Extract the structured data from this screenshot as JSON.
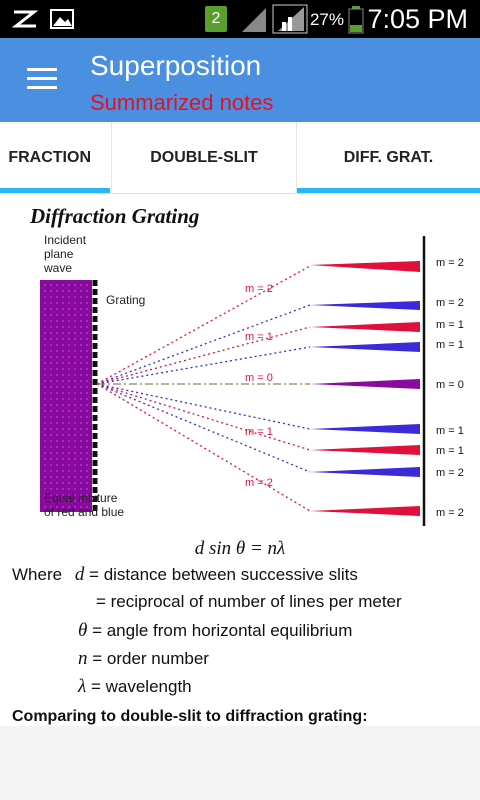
{
  "status_bar": {
    "notification_count": "2",
    "battery_percent": "27%",
    "time": "7:05 PM"
  },
  "app_bar": {
    "title": "Superposition",
    "subtitle": "Summarized notes"
  },
  "tabs": [
    {
      "label": "FRACTION"
    },
    {
      "label": "DOUBLE-SLIT"
    },
    {
      "label": "DIFF. GRAT.",
      "selected": true
    }
  ],
  "content": {
    "heading": "Diffraction Grating",
    "diagram": {
      "incident_label_1": "Incident",
      "incident_label_2": "plane",
      "incident_label_3": "wave",
      "grating_label": "Grating",
      "mixture_label_1": "Equal mixture",
      "mixture_label_2": "of red and blue",
      "order_labels_left": [
        "m = 2",
        "m = 1",
        "m = 0",
        "m = 1",
        "m = 2"
      ],
      "order_labels_right": [
        "m = 2",
        "m = 2",
        "m = 1",
        "m = 1",
        "m = 0",
        "m = 1",
        "m = 1",
        "m = 2",
        "m = 2"
      ]
    },
    "formula": "d sin θ = nλ",
    "definitions": {
      "where": "Where",
      "d_var": "d",
      "d_eq": "= distance between successive slits",
      "d_eq2": "= reciprocal of number of lines per meter",
      "theta_var": "θ",
      "theta_eq": "= angle from horizontal equilibrium",
      "n_var": "n",
      "n_eq": "= order number",
      "lambda_var": "λ",
      "lambda_eq": "= wavelength"
    },
    "comparing": "Comparing to double-slit to diffraction grating:"
  },
  "colors": {
    "app_bar": "#4a8fe0",
    "subtitle": "#e8101c",
    "tab_indicator": "#29b6f6",
    "red_ray": "#e0103c",
    "blue_ray": "#3a2ad8",
    "wave_purple": "#8a0aa0"
  }
}
